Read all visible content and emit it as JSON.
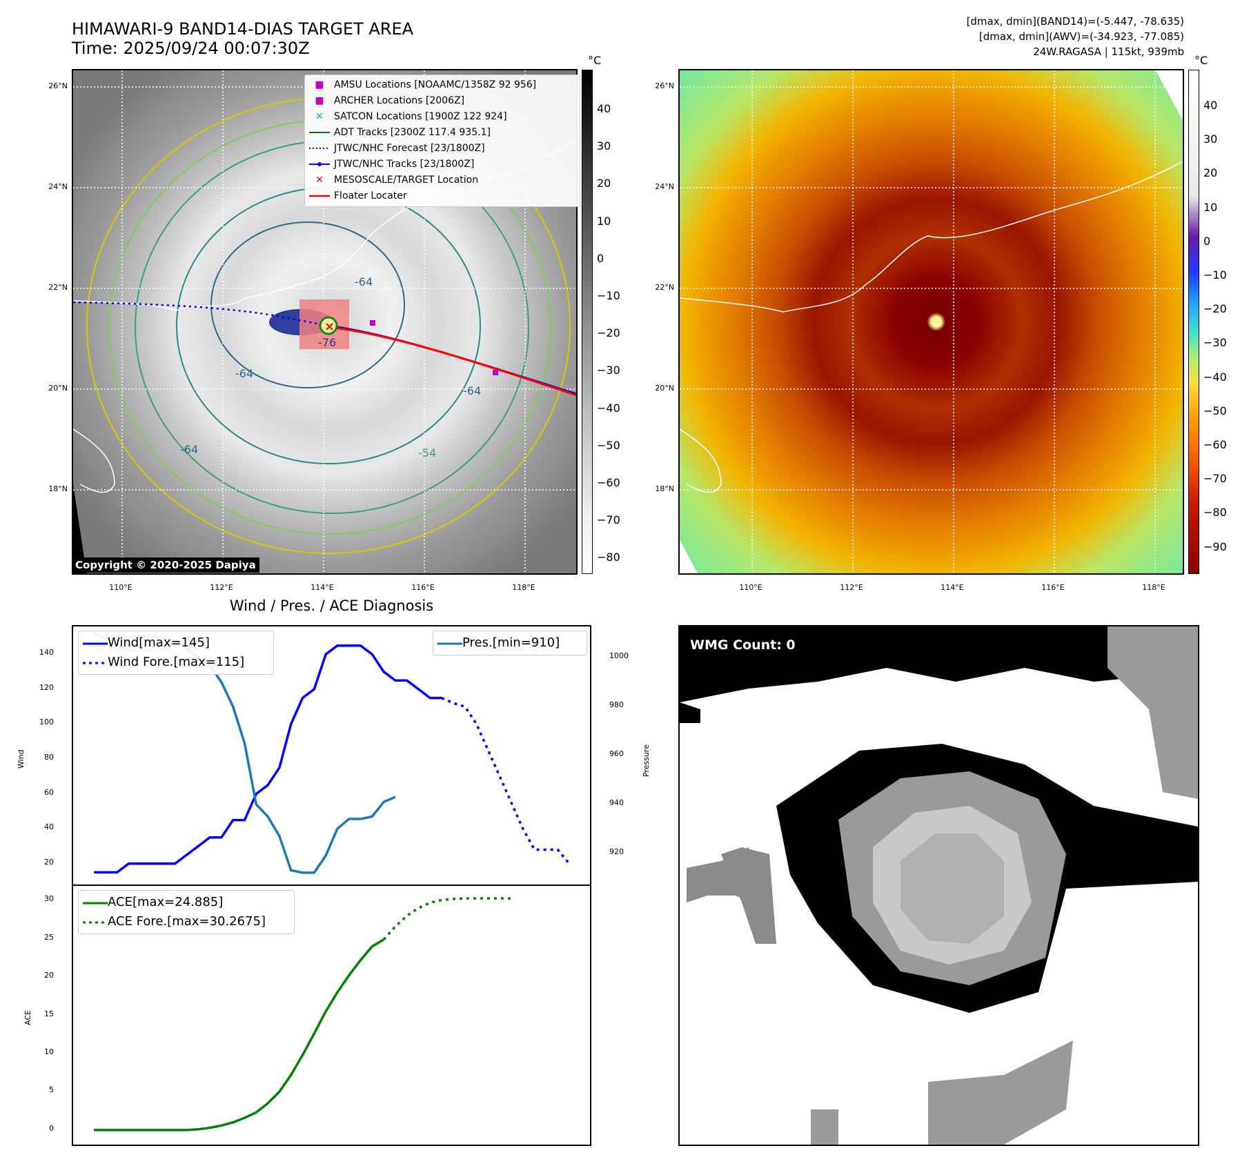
{
  "header": {
    "title_line1": "HIMAWARI-9 BAND14-DIAS TARGET AREA",
    "title_line2": "Time: 2025/09/24 00:07:30Z",
    "right_line1": "[dmax, dmin](BAND14)=(-5.447, -78.635)",
    "right_line2": "[dmax, dmin](AWV)=(-34.923, -77.085)",
    "right_line3": "24W.RAGASA | 115kt, 939mb"
  },
  "maps": {
    "lat_labels": [
      "26°N",
      "24°N",
      "22°N",
      "20°N",
      "18°N"
    ],
    "lon_labels": [
      "110°E",
      "112°E",
      "114°E",
      "116°E",
      "118°E"
    ],
    "copyright": "Copyright © 2020-2025 Dapiya",
    "contour_labels": [
      "-64",
      "-76",
      "-64",
      "-64",
      "-54",
      "-64"
    ],
    "legend": [
      {
        "label": "AMSU Locations [NOAAMC/1358Z 92 956]",
        "color": "#bf00bf"
      },
      {
        "label": "ARCHER Locations [2006Z]",
        "color": "#bf00bf"
      },
      {
        "label": "SATCON Locations [1900Z 122 924]",
        "color": "#00bfbf"
      },
      {
        "label": "ADT Tracks [2300Z 117.4 935.1]",
        "color": "#008000"
      },
      {
        "label": "JTWC/NHC Forecast [23/1800Z]",
        "color": "#0000ff"
      },
      {
        "label": "JTWC/NHC Tracks [23/1800Z]",
        "color": "#0000ff"
      },
      {
        "label": "MESOSCALE/TARGET Location",
        "color": "#ff0000"
      },
      {
        "label": "Floater Locater",
        "color": "#ff0000"
      }
    ],
    "cbar_unit": "°C",
    "cbar_gray_ticks": [
      "40",
      "30",
      "20",
      "10",
      "0",
      "−10",
      "−20",
      "−30",
      "−40",
      "−50",
      "−60",
      "−70",
      "−80"
    ],
    "cbar_color_ticks": [
      "40",
      "30",
      "20",
      "10",
      "0",
      "−10",
      "−20",
      "−30",
      "−40",
      "−50",
      "−60",
      "−70",
      "−80",
      "−90"
    ]
  },
  "diag_title": "Wind / Pres. / ACE Diagnosis",
  "wmg_label": "WMG Count: 0",
  "chart_data": [
    {
      "type": "line",
      "title": "Wind / Pres. / ACE Diagnosis",
      "ylabel": "Wind",
      "y2label": "Pressure",
      "ylim": [
        12,
        152
      ],
      "y2lim": [
        910,
        1010
      ],
      "y_ticks": [
        20,
        40,
        60,
        80,
        100,
        120,
        140
      ],
      "y2_ticks": [
        920,
        940,
        960,
        980,
        1000
      ],
      "legend_left": [
        "Wind[max=145]",
        "Wind Fore.[max=115]"
      ],
      "legend_right": [
        "Pres.[min=910]"
      ],
      "series": [
        {
          "name": "Wind[max=145]",
          "color": "#0000ff",
          "axis": "y",
          "values": [
            15,
            15,
            15,
            20,
            20,
            20,
            20,
            20,
            25,
            30,
            35,
            35,
            45,
            45,
            60,
            65,
            75,
            100,
            115,
            120,
            140,
            145,
            145,
            145,
            140,
            130,
            125,
            125,
            120,
            115,
            115
          ]
        },
        {
          "name": "Wind Fore.[max=115]",
          "color": "#0000ff",
          "axis": "y",
          "dashed": true,
          "offset": 30,
          "values": [
            115,
            112,
            110,
            100,
            85,
            70,
            55,
            40,
            28,
            28,
            28,
            20
          ]
        },
        {
          "name": "Pres.[min=910]",
          "color": "#1f77b4",
          "axis": "y2",
          "values": [
            1010,
            1008,
            1008,
            1008,
            1009,
            1009,
            1008,
            1007,
            1004,
            1000,
            997,
            990,
            980,
            965,
            940,
            935,
            927,
            913,
            912,
            912,
            919,
            930,
            934,
            934,
            935,
            941,
            943
          ]
        }
      ]
    },
    {
      "type": "line",
      "ylabel": "ACE",
      "ylim": [
        -1,
        31
      ],
      "y_ticks": [
        0,
        5,
        10,
        15,
        20,
        25,
        30
      ],
      "legend": [
        "ACE[max=24.885]",
        "ACE Fore.[max=30.2675]"
      ],
      "series": [
        {
          "name": "ACE[max=24.885]",
          "color": "#008000",
          "values": [
            0,
            0,
            0,
            0,
            0,
            0,
            0,
            0,
            0,
            0.1,
            0.3,
            0.6,
            1.0,
            1.6,
            2.3,
            3.5,
            5.0,
            7.2,
            9.8,
            12.6,
            15.5,
            18.0,
            20.2,
            22.2,
            24.0,
            24.885
          ]
        },
        {
          "name": "ACE Fore.[max=30.2675]",
          "color": "#008000",
          "dashed": true,
          "offset": 25,
          "values": [
            24.885,
            26.6,
            28.0,
            29.0,
            29.7,
            30.05,
            30.2,
            30.26,
            30.2675,
            30.2675,
            30.2675,
            30.2675
          ]
        }
      ]
    }
  ]
}
